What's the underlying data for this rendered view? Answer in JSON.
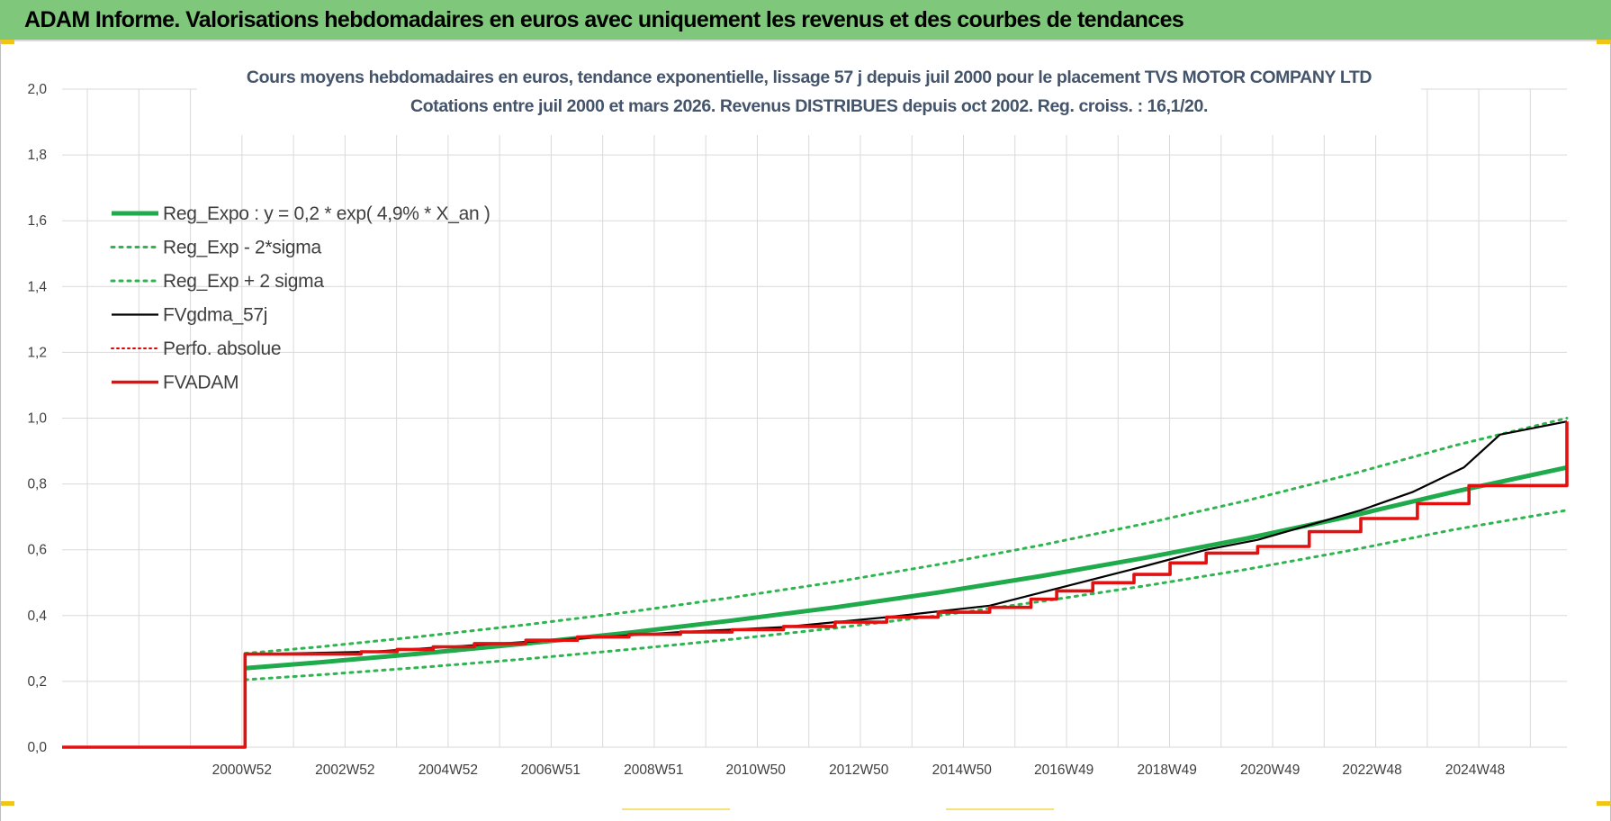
{
  "header": {
    "title": "ADAM Informe. Valorisations hebdomadaires en euros avec uniquement les revenus et des courbes de tendances"
  },
  "colors": {
    "banner": "#7fc77a",
    "reg_expo": "#1faa4b",
    "band": "#2fb550",
    "fvgdma": "#000000",
    "perfo": "#e00000",
    "fvadam": "#e31010",
    "grid": "#d9d9d9"
  },
  "chart_data": {
    "type": "line",
    "title": "Cours moyens hebdomadaires en euros, tendance exponentielle, lissage 57 j depuis juil 2000 pour le placement TVS MOTOR COMPANY LTD",
    "subtitle": "Cotations entre juil 2000 et mars 2026. Revenus DISTRIBUES depuis oct 2002. Reg. croiss. : 16,1/20.",
    "xlabel": "",
    "ylabel": "",
    "ylim": [
      0,
      2
    ],
    "y_ticks": [
      "0,0",
      "0,2",
      "0,4",
      "0,6",
      "0,8",
      "1,0",
      "1,2",
      "1,4",
      "1,6",
      "1,8",
      "2,0"
    ],
    "xlim": [
      1997.0,
      2026.2
    ],
    "x_ticks": [
      {
        "label": "2000W52",
        "x": 2000.99
      },
      {
        "label": "2002W52",
        "x": 2002.99
      },
      {
        "label": "2004W52",
        "x": 2004.99
      },
      {
        "label": "2006W51",
        "x": 2006.98
      },
      {
        "label": "2008W51",
        "x": 2008.98
      },
      {
        "label": "2010W50",
        "x": 2010.96
      },
      {
        "label": "2012W50",
        "x": 2012.96
      },
      {
        "label": "2014W50",
        "x": 2014.96
      },
      {
        "label": "2016W49",
        "x": 2016.94
      },
      {
        "label": "2018W49",
        "x": 2018.94
      },
      {
        "label": "2020W49",
        "x": 2020.94
      },
      {
        "label": "2022W48",
        "x": 2022.92
      },
      {
        "label": "2024W48",
        "x": 2024.92
      }
    ],
    "grid": true,
    "legend_position": "top-left",
    "series": [
      {
        "name": "Reg_Expo : y = 0,2 * exp( 4,9% *  X_an )",
        "style": "solid-thick",
        "color": "#1faa4b",
        "x": [
          2000.55,
          2002,
          2004,
          2006,
          2008,
          2010,
          2012,
          2014,
          2016,
          2018,
          2020,
          2022,
          2024,
          2026.2
        ],
        "y": [
          0.24,
          0.258,
          0.285,
          0.315,
          0.348,
          0.385,
          0.425,
          0.47,
          0.52,
          0.575,
          0.635,
          0.702,
          0.776,
          0.85
        ]
      },
      {
        "name": "Reg_Exp - 2*sigma",
        "style": "dotted",
        "color": "#2fb550",
        "x": [
          2000.55,
          2002,
          2004,
          2006,
          2008,
          2010,
          2012,
          2014,
          2016,
          2018,
          2020,
          2022,
          2024,
          2026.2
        ],
        "y": [
          0.205,
          0.22,
          0.243,
          0.268,
          0.297,
          0.328,
          0.362,
          0.4,
          0.443,
          0.49,
          0.541,
          0.598,
          0.661,
          0.72
        ]
      },
      {
        "name": "Reg_Exp + 2 sigma",
        "style": "dotted",
        "color": "#2fb550",
        "x": [
          2000.55,
          2002,
          2004,
          2006,
          2008,
          2010,
          2012,
          2014,
          2016,
          2018,
          2020,
          2022,
          2024,
          2026.2
        ],
        "y": [
          0.285,
          0.305,
          0.337,
          0.372,
          0.411,
          0.455,
          0.502,
          0.555,
          0.614,
          0.679,
          0.75,
          0.829,
          0.916,
          1.0
        ]
      },
      {
        "name": "FVgdma_57j",
        "style": "solid-thin",
        "color": "#000000",
        "x": [
          1997.0,
          2000.55,
          2000.55,
          2003,
          2005,
          2007,
          2009,
          2011,
          2013,
          2015,
          2016.5,
          2018,
          2019.2,
          2020.2,
          2021.2,
          2022.2,
          2023.2,
          2024.2,
          2024.9,
          2026.2
        ],
        "y": [
          0.0,
          0.0,
          0.282,
          0.29,
          0.31,
          0.33,
          0.35,
          0.365,
          0.395,
          0.43,
          0.49,
          0.55,
          0.6,
          0.63,
          0.675,
          0.72,
          0.775,
          0.85,
          0.95,
          0.99
        ]
      },
      {
        "name": "Perfo. absolue",
        "style": "dotted-thin",
        "color": "#e00000",
        "x": [
          1997.0,
          2000.55,
          2000.55,
          2026.2
        ],
        "y": [
          0.0,
          0.0,
          0.283,
          0.99
        ]
      },
      {
        "name": "FVADAM",
        "style": "step-thick",
        "color": "#e31010",
        "x": [
          1997.0,
          2000.55,
          2000.55,
          2002.8,
          2003.5,
          2004.2,
          2005.0,
          2006.0,
          2007.0,
          2008.0,
          2009.0,
          2010.0,
          2011.0,
          2012.0,
          2013.0,
          2014.0,
          2015.0,
          2015.8,
          2016.3,
          2017.0,
          2017.8,
          2018.5,
          2019.2,
          2020.2,
          2021.2,
          2022.2,
          2023.3,
          2024.3,
          2026.2
        ],
        "y": [
          0.0,
          0.0,
          0.283,
          0.29,
          0.297,
          0.305,
          0.315,
          0.325,
          0.335,
          0.343,
          0.35,
          0.357,
          0.367,
          0.38,
          0.395,
          0.41,
          0.425,
          0.45,
          0.475,
          0.5,
          0.525,
          0.56,
          0.59,
          0.61,
          0.655,
          0.695,
          0.74,
          0.795,
          0.99
        ]
      }
    ]
  }
}
